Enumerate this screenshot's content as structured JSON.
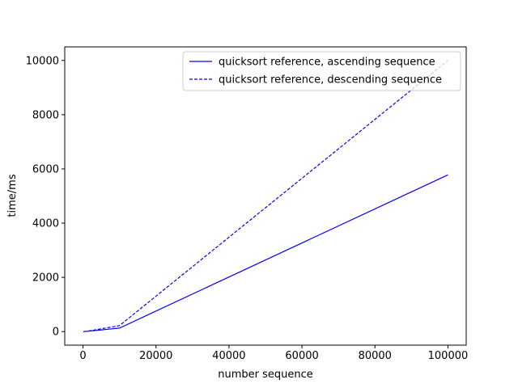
{
  "chart_data": {
    "type": "line",
    "title": "",
    "xlabel": "number sequence",
    "ylabel": "time/ms",
    "xlim": [
      -5000,
      105000
    ],
    "ylim": [
      -500,
      10500
    ],
    "x_ticks": [
      0,
      20000,
      40000,
      60000,
      80000,
      100000
    ],
    "y_ticks": [
      0,
      2000,
      4000,
      6000,
      8000,
      10000
    ],
    "grid": false,
    "legend_position": "top-right",
    "series": [
      {
        "name": "quicksort reference, ascending sequence",
        "color": "#0000ff",
        "linestyle": "solid",
        "x": [
          100,
          1000,
          10000,
          100000
        ],
        "y": [
          1,
          8,
          130,
          5780
        ]
      },
      {
        "name": "quicksort reference, descending sequence",
        "color": "#0000ff",
        "linestyle": "dashed",
        "x": [
          100,
          1000,
          10000,
          100000
        ],
        "y": [
          1,
          10,
          220,
          10000
        ]
      }
    ]
  }
}
